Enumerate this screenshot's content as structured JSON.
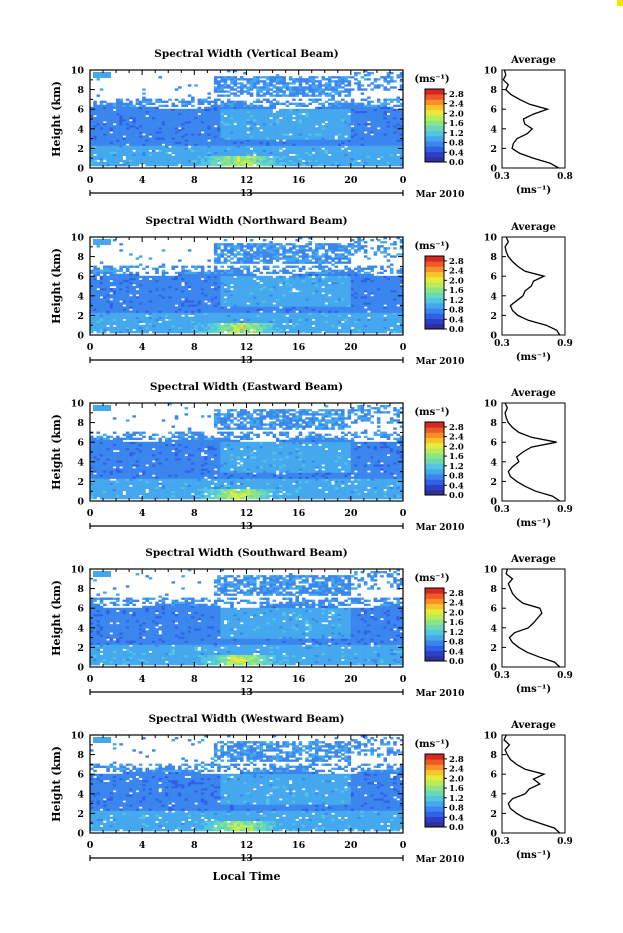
{
  "common": {
    "xlabel": "Local Time",
    "ylabel": "Height (km)",
    "avg_title": "Average",
    "avg_xlabel": "(ms⁻¹)",
    "colorbar_unit": "(ms⁻¹)",
    "date_label": "Mar 2010",
    "day_marker": "13",
    "x_ticks": [
      "0",
      "4",
      "8",
      "12",
      "16",
      "20",
      "0"
    ],
    "y_ticks": [
      "0",
      "2",
      "4",
      "6",
      "8",
      "10"
    ],
    "colorbar_ticks": [
      "0.0",
      "0.4",
      "0.8",
      "1.2",
      "1.6",
      "2.0",
      "2.4",
      "2.8"
    ],
    "colormap": [
      "#30309a",
      "#2d3fc8",
      "#2f60e6",
      "#3a86ee",
      "#45a8ee",
      "#52c5e0",
      "#68d8b8",
      "#8be488",
      "#b8ec5a",
      "#e6ea3a",
      "#f8c42a",
      "#f8902a",
      "#ee5a26",
      "#d42a22"
    ]
  },
  "chart_data": [
    {
      "type": "heatmap",
      "title": "Spectral Width (Vertical Beam)",
      "xlabel": "Local Time",
      "ylabel": "Height (km)",
      "xlim": [
        0,
        24
      ],
      "ylim": [
        0,
        10
      ],
      "clim": [
        0.0,
        3.0
      ],
      "avg": {
        "xlim": [
          0.3,
          0.8
        ],
        "x_ticks": [
          "0.3",
          "0.8"
        ],
        "heights": [
          0,
          0.5,
          1,
          1.5,
          2,
          2.5,
          3,
          3.5,
          4,
          4.5,
          5,
          5.5,
          6,
          6.5,
          7,
          7.5,
          8,
          8.5,
          9,
          9.5,
          10
        ],
        "values": [
          0.75,
          0.68,
          0.55,
          0.44,
          0.38,
          0.39,
          0.42,
          0.5,
          0.54,
          0.48,
          0.47,
          0.55,
          0.66,
          0.52,
          0.44,
          0.37,
          0.33,
          0.35,
          0.31,
          0.33,
          0.32
        ]
      }
    },
    {
      "type": "heatmap",
      "title": "Spectral Width (Northward Beam)",
      "xlabel": "Local Time",
      "ylabel": "Height (km)",
      "xlim": [
        0,
        24
      ],
      "ylim": [
        0,
        10
      ],
      "clim": [
        0.0,
        3.0
      ],
      "avg": {
        "xlim": [
          0.3,
          0.9
        ],
        "x_ticks": [
          "0.3",
          "0.9"
        ],
        "heights": [
          0,
          0.5,
          1,
          1.5,
          2,
          2.5,
          3,
          3.5,
          4,
          4.5,
          5,
          5.5,
          6,
          6.5,
          7,
          7.5,
          8,
          8.5,
          9,
          9.5,
          10
        ],
        "values": [
          0.85,
          0.82,
          0.72,
          0.55,
          0.45,
          0.4,
          0.38,
          0.44,
          0.5,
          0.52,
          0.58,
          0.6,
          0.7,
          0.52,
          0.45,
          0.4,
          0.36,
          0.34,
          0.33,
          0.36,
          0.34
        ]
      }
    },
    {
      "type": "heatmap",
      "title": "Spectral Width (Eastward Beam)",
      "xlabel": "Local Time",
      "ylabel": "Height (km)",
      "xlim": [
        0,
        24
      ],
      "ylim": [
        0,
        10
      ],
      "clim": [
        0.0,
        3.0
      ],
      "avg": {
        "xlim": [
          0.3,
          0.9
        ],
        "x_ticks": [
          "0.3",
          "0.9"
        ],
        "heights": [
          0,
          0.5,
          1,
          1.5,
          2,
          2.5,
          3,
          3.5,
          4,
          4.5,
          5,
          5.5,
          6,
          6.5,
          7,
          7.5,
          8,
          8.5,
          9,
          9.5,
          10
        ],
        "values": [
          0.85,
          0.78,
          0.62,
          0.52,
          0.44,
          0.38,
          0.36,
          0.4,
          0.46,
          0.44,
          0.5,
          0.58,
          0.82,
          0.58,
          0.46,
          0.4,
          0.36,
          0.34,
          0.33,
          0.35,
          0.33
        ]
      }
    },
    {
      "type": "heatmap",
      "title": "Spectral Width (Southward Beam)",
      "xlabel": "Local Time",
      "ylabel": "Height (km)",
      "xlim": [
        0,
        24
      ],
      "ylim": [
        0,
        10
      ],
      "clim": [
        0.0,
        3.0
      ],
      "avg": {
        "xlim": [
          0.3,
          0.9
        ],
        "x_ticks": [
          "0.3",
          "0.9"
        ],
        "heights": [
          0,
          0.5,
          1,
          1.5,
          2,
          2.5,
          3,
          3.5,
          4,
          4.5,
          5,
          5.5,
          6,
          6.5,
          7,
          7.5,
          8,
          8.5,
          9,
          9.5,
          10
        ],
        "values": [
          0.85,
          0.8,
          0.66,
          0.54,
          0.46,
          0.4,
          0.37,
          0.42,
          0.55,
          0.6,
          0.64,
          0.68,
          0.66,
          0.5,
          0.44,
          0.4,
          0.38,
          0.36,
          0.4,
          0.34,
          0.35
        ]
      }
    },
    {
      "type": "heatmap",
      "title": "Spectral Width (Westward Beam)",
      "xlabel": "Local Time",
      "ylabel": "Height (km)",
      "xlim": [
        0,
        24
      ],
      "ylim": [
        0,
        10
      ],
      "clim": [
        0.0,
        3.0
      ],
      "avg": {
        "xlim": [
          0.3,
          0.9
        ],
        "x_ticks": [
          "0.3",
          "0.9"
        ],
        "heights": [
          0,
          0.5,
          1,
          1.5,
          2,
          2.5,
          3,
          3.5,
          4,
          4.5,
          5,
          5.5,
          6,
          6.5,
          7,
          7.5,
          8,
          8.5,
          9,
          9.5,
          10
        ],
        "values": [
          0.85,
          0.8,
          0.66,
          0.52,
          0.44,
          0.38,
          0.36,
          0.4,
          0.52,
          0.56,
          0.66,
          0.6,
          0.7,
          0.52,
          0.44,
          0.38,
          0.35,
          0.33,
          0.37,
          0.32,
          0.34
        ]
      }
    }
  ]
}
